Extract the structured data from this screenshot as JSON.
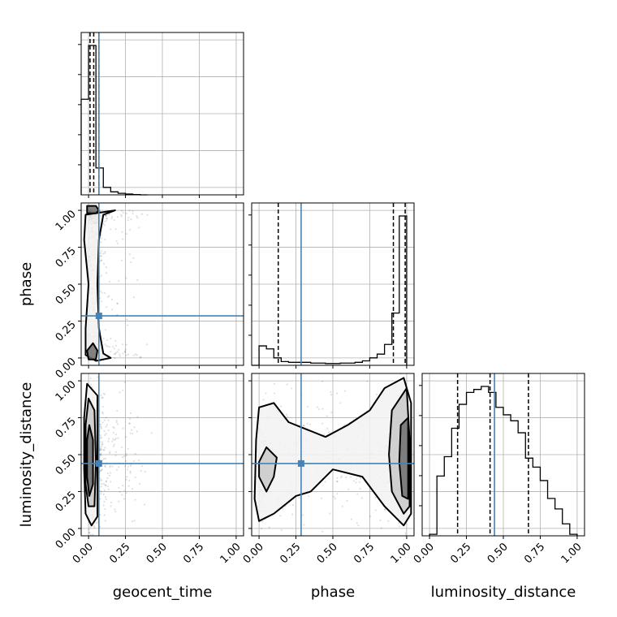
{
  "chart_data": {
    "type": "corner",
    "parameters": [
      "geocent_time",
      "phase",
      "luminosity_distance"
    ],
    "axis_labels": {
      "geocent_time": "geocent_time",
      "phase": "phase",
      "luminosity_distance": "luminosity_distance"
    },
    "tick_values": [
      0.0,
      0.25,
      0.5,
      0.75,
      1.0
    ],
    "tick_labels": [
      "0.00",
      "0.25",
      "0.50",
      "0.75",
      "1.00"
    ],
    "axis_range": [
      -0.05,
      1.05
    ],
    "grid": true,
    "truth_color": "#4682b4",
    "truths": {
      "geocent_time": 0.07,
      "phase": 0.285,
      "luminosity_distance": 0.44
    },
    "quantiles": {
      "geocent_time": [
        0.01,
        0.035,
        0.07
      ],
      "phase": [
        0.13,
        0.91,
        0.99
      ],
      "luminosity_distance": [
        0.19,
        0.41,
        0.67
      ]
    },
    "histograms": {
      "geocent_time": {
        "bin_edges": [
          -0.05,
          0.0,
          0.05,
          0.1,
          0.15,
          0.2,
          0.25,
          0.3,
          0.35,
          0.4
        ],
        "counts": [
          0.64,
          1.0,
          0.18,
          0.05,
          0.02,
          0.01,
          0.005,
          0.002,
          0.0
        ]
      },
      "phase": {
        "bin_edges": [
          -0.05,
          0.0,
          0.05,
          0.1,
          0.15,
          0.2,
          0.25,
          0.3,
          0.35,
          0.4,
          0.45,
          0.5,
          0.55,
          0.6,
          0.65,
          0.7,
          0.75,
          0.8,
          0.85,
          0.9,
          0.95,
          1.0
        ],
        "counts": [
          0.0,
          0.13,
          0.11,
          0.05,
          0.025,
          0.02,
          0.02,
          0.02,
          0.015,
          0.015,
          0.012,
          0.012,
          0.015,
          0.015,
          0.02,
          0.03,
          0.05,
          0.075,
          0.14,
          0.35,
          1.0
        ]
      },
      "luminosity_distance": {
        "bin_edges": [
          0.0,
          0.05,
          0.1,
          0.15,
          0.2,
          0.25,
          0.3,
          0.35,
          0.4,
          0.45,
          0.5,
          0.55,
          0.6,
          0.65,
          0.7,
          0.75,
          0.8,
          0.85,
          0.9,
          0.95,
          1.0
        ],
        "counts": [
          0.01,
          0.4,
          0.53,
          0.72,
          0.88,
          0.96,
          0.98,
          1.0,
          0.96,
          0.86,
          0.81,
          0.77,
          0.69,
          0.52,
          0.46,
          0.37,
          0.25,
          0.18,
          0.08,
          0.01
        ]
      }
    },
    "contours": {
      "phase_vs_geocent_time": [
        {
          "level": "outer",
          "points": [
            [
              -0.02,
              0.97
            ],
            [
              0.18,
              1.0
            ],
            [
              0.1,
              0.97
            ],
            [
              0.07,
              0.8
            ],
            [
              0.06,
              0.5
            ],
            [
              0.07,
              0.2
            ],
            [
              0.1,
              0.03
            ],
            [
              0.15,
              0.0
            ],
            [
              0.05,
              -0.02
            ],
            [
              -0.02,
              0.02
            ],
            [
              -0.02,
              0.2
            ],
            [
              0.0,
              0.5
            ],
            [
              -0.03,
              0.8
            ]
          ]
        },
        {
          "level": "inner",
          "points": [
            [
              -0.01,
              1.03
            ],
            [
              0.05,
              1.03
            ],
            [
              0.07,
              1.0
            ],
            [
              0.05,
              0.98
            ],
            [
              -0.01,
              0.98
            ]
          ]
        },
        {
          "level": "inner",
          "points": [
            [
              -0.01,
              0.05
            ],
            [
              0.03,
              0.1
            ],
            [
              0.06,
              0.05
            ],
            [
              0.05,
              -0.01
            ],
            [
              0.0,
              -0.01
            ]
          ]
        }
      ],
      "luminosity_distance_vs_geocent_time": [
        {
          "level": "outer",
          "points": [
            [
              -0.01,
              0.98
            ],
            [
              0.06,
              0.9
            ],
            [
              0.06,
              0.5
            ],
            [
              0.06,
              0.08
            ],
            [
              0.02,
              0.02
            ],
            [
              -0.02,
              0.1
            ],
            [
              -0.03,
              0.4
            ],
            [
              -0.03,
              0.75
            ]
          ]
        },
        {
          "level": "middle",
          "points": [
            [
              0.0,
              0.88
            ],
            [
              0.04,
              0.8
            ],
            [
              0.05,
              0.45
            ],
            [
              0.04,
              0.15
            ],
            [
              0.0,
              0.15
            ],
            [
              -0.02,
              0.3
            ],
            [
              -0.02,
              0.7
            ]
          ]
        },
        {
          "level": "inner",
          "points": [
            [
              0.005,
              0.7
            ],
            [
              0.03,
              0.6
            ],
            [
              0.03,
              0.3
            ],
            [
              0.005,
              0.22
            ],
            [
              -0.01,
              0.35
            ],
            [
              -0.01,
              0.6
            ]
          ]
        }
      ],
      "luminosity_distance_vs_phase": [
        {
          "level": "outer",
          "points": [
            [
              0.0,
              0.82
            ],
            [
              0.1,
              0.85
            ],
            [
              0.2,
              0.72
            ],
            [
              0.3,
              0.68
            ],
            [
              0.45,
              0.62
            ],
            [
              0.6,
              0.7
            ],
            [
              0.75,
              0.8
            ],
            [
              0.85,
              0.95
            ],
            [
              0.98,
              1.02
            ],
            [
              1.03,
              0.85
            ],
            [
              1.03,
              0.1
            ],
            [
              0.98,
              0.02
            ],
            [
              0.85,
              0.15
            ],
            [
              0.7,
              0.35
            ],
            [
              0.5,
              0.4
            ],
            [
              0.35,
              0.25
            ],
            [
              0.25,
              0.22
            ],
            [
              0.1,
              0.1
            ],
            [
              0.0,
              0.05
            ],
            [
              -0.03,
              0.2
            ],
            [
              -0.02,
              0.6
            ]
          ]
        },
        {
          "level": "middle",
          "points": [
            [
              0.05,
              0.55
            ],
            [
              0.12,
              0.48
            ],
            [
              0.1,
              0.35
            ],
            [
              0.05,
              0.25
            ],
            [
              0.0,
              0.35
            ],
            [
              0.0,
              0.45
            ]
          ]
        },
        {
          "level": "middle",
          "points": [
            [
              0.9,
              0.8
            ],
            [
              1.0,
              0.95
            ],
            [
              1.02,
              0.6
            ],
            [
              1.02,
              0.15
            ],
            [
              0.98,
              0.1
            ],
            [
              0.9,
              0.25
            ],
            [
              0.88,
              0.5
            ]
          ]
        },
        {
          "level": "inner",
          "points": [
            [
              0.96,
              0.7
            ],
            [
              1.01,
              0.75
            ],
            [
              1.01,
              0.2
            ],
            [
              0.97,
              0.22
            ],
            [
              0.95,
              0.45
            ]
          ]
        }
      ]
    }
  }
}
